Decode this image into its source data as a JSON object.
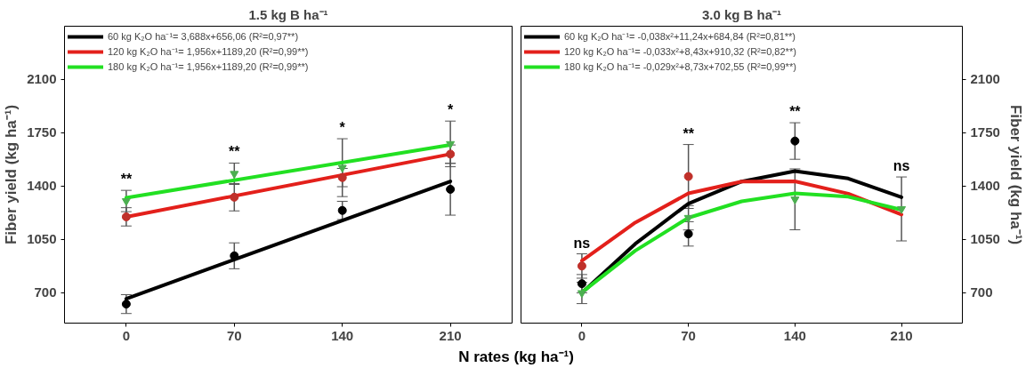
{
  "chart_data": [
    {
      "type": "scatter",
      "title": "1.5 kg B ha⁻¹",
      "ylabel": "Fiber yield (kg ha⁻¹)",
      "xlabel": "N rates (kg ha⁻¹)",
      "x": [
        0,
        70,
        140,
        210
      ],
      "xlim": [
        -40,
        250
      ],
      "xticks": [
        0,
        70,
        140,
        210
      ],
      "ylim": [
        500,
        2450
      ],
      "yticks": [
        700,
        1050,
        1400,
        1750,
        2100
      ],
      "grid": false,
      "legend": "top left",
      "series": [
        {
          "type": "line",
          "name": "60 kg K₂O ha⁻¹= 3,688x+656,06 (R²=0,97**)",
          "color": "#000000",
          "x": [
            0,
            210
          ],
          "values": [
            660,
            1431
          ],
          "marker": "none"
        },
        {
          "type": "line",
          "name": "120 kg K₂O ha⁻¹= 1,956x+1189,20 (R²=0,99**)",
          "color": "#e3201b",
          "x": [
            0,
            210
          ],
          "values": [
            1198,
            1610
          ],
          "marker": "none"
        },
        {
          "type": "line",
          "name": "180 kg K₂O ha⁻¹= 1,956x+1189,20 (R²=0,99**)",
          "color": "#22e022",
          "x": [
            0,
            210
          ],
          "values": [
            1323,
            1671
          ],
          "marker": "none"
        },
        {
          "color": "#000000",
          "marker": "circle",
          "values": [
            625,
            942,
            1240,
            1379
          ],
          "errors": [
            62,
            85,
            60,
            170
          ]
        },
        {
          "color": "#c0302a",
          "marker": "circle",
          "values": [
            1198,
            1327,
            1456,
            1610
          ],
          "errors": [
            60,
            90,
            60,
            60
          ]
        },
        {
          "color": "#4caf50",
          "marker": "triangle",
          "values": [
            1302,
            1481,
            1521,
            1677
          ],
          "errors": [
            70,
            70,
            190,
            150
          ]
        }
      ],
      "annotations": [
        "**",
        "**",
        "*",
        "*"
      ]
    },
    {
      "type": "scatter",
      "title": "3.0 kg B ha⁻¹",
      "y2label": "Fiber yield (kg ha⁻¹)",
      "x": [
        0,
        70,
        140,
        210
      ],
      "xlim": [
        -40,
        250
      ],
      "xticks": [
        0,
        70,
        140,
        210
      ],
      "y2lim": [
        500,
        2450
      ],
      "y2ticks": [
        700,
        1050,
        1400,
        1750,
        2100
      ],
      "grid": false,
      "legend": "top left",
      "series": [
        {
          "type": "line",
          "axis": "y2",
          "name": "60 kg K₂O ha⁻¹= -0,038x²+11,24x+684,84 (R²=0,81**)",
          "color": "#000000",
          "x": [
            0,
            35,
            70,
            105,
            140,
            175,
            210
          ],
          "values": [
            698,
            1020,
            1285,
            1430,
            1498,
            1450,
            1327
          ],
          "marker": "none"
        },
        {
          "type": "line",
          "axis": "y2",
          "name": "120 kg K₂O ha⁻¹= -0,033x²+8,43x+910,32 (R²=0,82**)",
          "color": "#e3201b",
          "x": [
            0,
            35,
            70,
            105,
            140,
            175,
            210
          ],
          "values": [
            910,
            1160,
            1352,
            1430,
            1431,
            1350,
            1213
          ],
          "marker": "none"
        },
        {
          "type": "line",
          "axis": "y2",
          "name": "180 kg K₂O ha⁻¹= -0,029x²+8,73x+702,55 (R²=0,99**)",
          "color": "#22e022",
          "x": [
            0,
            35,
            70,
            105,
            140,
            175,
            210
          ],
          "values": [
            702,
            975,
            1192,
            1300,
            1352,
            1330,
            1244
          ],
          "marker": "none"
        },
        {
          "axis": "y2",
          "color": "#000000",
          "marker": "circle",
          "values": [
            759,
            1086,
            1696,
            null
          ],
          "errors": [
            60,
            80,
            120,
            null
          ]
        },
        {
          "axis": "y2",
          "color": "#c0302a",
          "marker": "circle",
          "values": [
            875,
            1463,
            null,
            null
          ],
          "errors": [
            80,
            210,
            null,
            null
          ]
        },
        {
          "axis": "y2",
          "color": "#4caf50",
          "marker": "triangle",
          "values": [
            698,
            1192,
            1313,
            1250
          ],
          "errors": [
            70,
            80,
            200,
            210
          ]
        }
      ],
      "annotations": [
        "ns",
        "**",
        "**",
        "ns"
      ]
    }
  ]
}
